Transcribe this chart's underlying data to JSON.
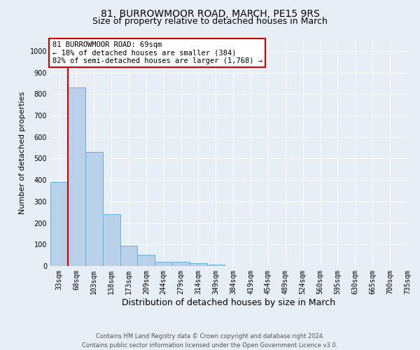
{
  "title": "81, BURROWMOOR ROAD, MARCH, PE15 9RS",
  "subtitle": "Size of property relative to detached houses in March",
  "xlabel": "Distribution of detached houses by size in March",
  "ylabel": "Number of detached properties",
  "bar_values": [
    390,
    830,
    530,
    240,
    95,
    52,
    18,
    18,
    12,
    5,
    0,
    0,
    0,
    0,
    0,
    0,
    0,
    0,
    0,
    0
  ],
  "bar_labels": [
    "33sqm",
    "68sqm",
    "103sqm",
    "138sqm",
    "173sqm",
    "209sqm",
    "244sqm",
    "279sqm",
    "314sqm",
    "349sqm",
    "384sqm",
    "419sqm",
    "454sqm",
    "489sqm",
    "524sqm",
    "560sqm",
    "595sqm",
    "630sqm",
    "665sqm",
    "700sqm",
    "735sqm"
  ],
  "bar_color": "#b8d0e8",
  "bar_edge_color": "#6aaed6",
  "annotation_text": "81 BURROWMOOR ROAD: 69sqm\n← 18% of detached houses are smaller (384)\n82% of semi-detached houses are larger (1,768) →",
  "vline_color": "#cc0000",
  "vline_x": 0.5,
  "ylim": [
    0,
    1050
  ],
  "yticks": [
    0,
    100,
    200,
    300,
    400,
    500,
    600,
    700,
    800,
    900,
    1000
  ],
  "footer_line1": "Contains HM Land Registry data © Crown copyright and database right 2024.",
  "footer_line2": "Contains public sector information licensed under the Open Government Licence v3.0.",
  "background_color": "#e8eef6",
  "grid_color": "#ffffff",
  "title_fontsize": 10,
  "subtitle_fontsize": 9,
  "xlabel_fontsize": 9,
  "ylabel_fontsize": 8,
  "tick_fontsize": 7,
  "annot_fontsize": 7.5,
  "footer_fontsize": 6
}
